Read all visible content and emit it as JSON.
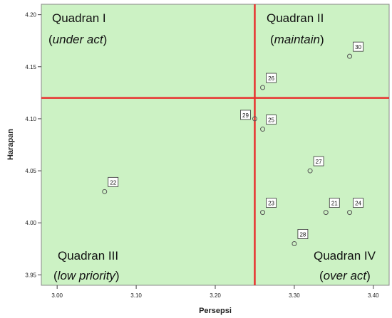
{
  "chart_data": {
    "type": "scatter",
    "xlabel": "Persepsi",
    "ylabel": "Harapan",
    "xlim": [
      2.98,
      3.42
    ],
    "ylim": [
      3.94,
      4.21
    ],
    "xticks": [
      "3.00",
      "3.10",
      "3.20",
      "3.30",
      "3.40"
    ],
    "yticks": [
      "3.95",
      "4.00",
      "4.05",
      "4.10",
      "4.15",
      "4.20"
    ],
    "xtick_values": [
      3.0,
      3.1,
      3.2,
      3.3,
      3.4
    ],
    "ytick_values": [
      3.95,
      4.0,
      4.05,
      4.1,
      4.15,
      4.2
    ],
    "x_divider": 3.25,
    "y_divider": 4.12,
    "background_color": "#ccf2c4",
    "divider_color": "#e8322f",
    "quadrants": {
      "q1": {
        "name": "Quadran I",
        "note_open": "(",
        "note": "under act",
        "note_close": ")"
      },
      "q2": {
        "name": "Quadran II",
        "note_open": "(",
        "note": "maintain",
        "note_close": ")"
      },
      "q3": {
        "name": "Quadran III",
        "note_open": "(",
        "note": "low priority",
        "note_close": ")"
      },
      "q4": {
        "name": "Quadran IV",
        "note_open": "(",
        "note": "over act",
        "note_close": ")"
      }
    },
    "points": [
      {
        "label": "30",
        "x": 3.37,
        "y": 4.16
      },
      {
        "label": "26",
        "x": 3.26,
        "y": 4.13
      },
      {
        "label": "29",
        "x": 3.25,
        "y": 4.1
      },
      {
        "label": "25",
        "x": 3.26,
        "y": 4.09
      },
      {
        "label": "27",
        "x": 3.32,
        "y": 4.05
      },
      {
        "label": "22",
        "x": 3.06,
        "y": 4.03
      },
      {
        "label": "23",
        "x": 3.26,
        "y": 4.01
      },
      {
        "label": "21",
        "x": 3.34,
        "y": 4.01
      },
      {
        "label": "24",
        "x": 3.37,
        "y": 4.01
      },
      {
        "label": "28",
        "x": 3.3,
        "y": 3.98
      }
    ]
  }
}
